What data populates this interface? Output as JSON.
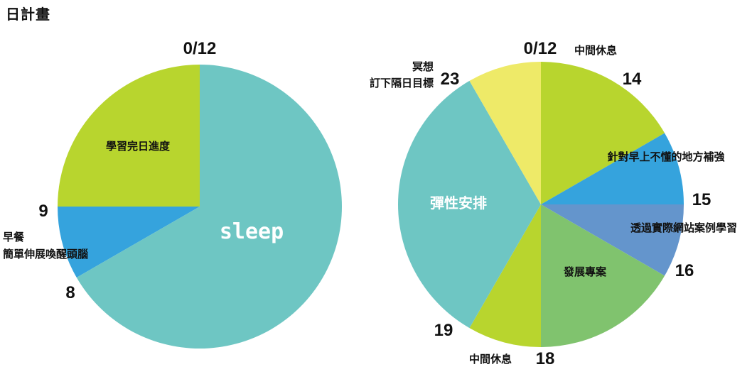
{
  "page": {
    "title": "日計畫"
  },
  "colors": {
    "teal": "#6ec6c3",
    "lime": "#b8d52e",
    "blue": "#35a3dd",
    "yellow": "#eeea68",
    "steel": "#6495cc",
    "green": "#80c36e"
  },
  "left_pie": {
    "hour_labels": {
      "top": "0/12",
      "nine": "9",
      "eight": "8"
    },
    "segments": [
      {
        "key": "study",
        "label": "學習完日進度",
        "from": 9,
        "to": 12,
        "color": "lime",
        "label_style": "lbl"
      },
      {
        "key": "sleep",
        "label": "sleep",
        "from": 0,
        "to": 8,
        "color": "teal",
        "label_style": "sleep"
      },
      {
        "key": "breakfast",
        "label_lines": [
          "早餐",
          "簡單伸展喚醒頭腦"
        ],
        "from": 8,
        "to": 9,
        "color": "blue"
      }
    ]
  },
  "right_pie": {
    "hour_labels": {
      "top": "0/12",
      "h14": "14",
      "h15": "15",
      "h16": "16",
      "h18": "18",
      "h19": "19",
      "h23": "23"
    },
    "segments": [
      {
        "key": "break-1",
        "label": "中間休息",
        "from": 12,
        "to": 14,
        "color": "lime"
      },
      {
        "key": "review",
        "label": "針對早上不懂的地方補強",
        "from": 14,
        "to": 15,
        "color": "blue"
      },
      {
        "key": "case-study",
        "label": "透過實際網站案例學習",
        "from": 15,
        "to": 16,
        "color": "steel"
      },
      {
        "key": "project",
        "label": "發展專案",
        "from": 16,
        "to": 18,
        "color": "green"
      },
      {
        "key": "break-2",
        "label": "中間休息",
        "from": 18,
        "to": 19,
        "color": "lime"
      },
      {
        "key": "flex",
        "label": "彈性安排",
        "from": 19,
        "to": 23,
        "color": "teal"
      },
      {
        "key": "meditate",
        "label_lines": [
          "冥想",
          "訂下隔日目標"
        ],
        "from": 23,
        "to": 24,
        "color": "yellow"
      }
    ]
  }
}
